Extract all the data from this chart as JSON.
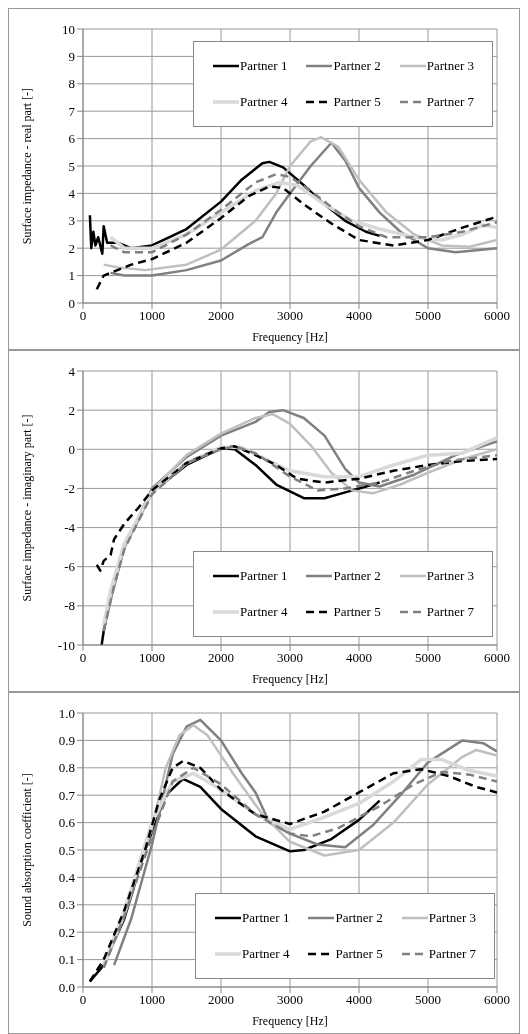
{
  "chart_data": [
    {
      "type": "line",
      "xlabel": "Frequency [Hz]",
      "ylabel": "Surface impedance - real part [-]",
      "xlim": [
        0,
        6000
      ],
      "xticks": [
        0,
        1000,
        2000,
        3000,
        4000,
        5000,
        6000
      ],
      "ylim": [
        0,
        10
      ],
      "yticks": [
        0,
        1,
        2,
        3,
        4,
        5,
        6,
        7,
        8,
        9,
        10
      ],
      "grid": true,
      "legend": "top",
      "marker": "none",
      "series": [
        {
          "name": "Partner 1",
          "color": "#000000",
          "line_style": "solid",
          "x": [
            100,
            120,
            150,
            180,
            220,
            280,
            300,
            350,
            500,
            700,
            1000,
            1500,
            2000,
            2300,
            2600,
            2700,
            2900,
            3200,
            3500,
            3800,
            4100,
            4300
          ],
          "values": [
            3.2,
            2.0,
            2.6,
            2.1,
            2.4,
            1.8,
            2.8,
            2.2,
            2.2,
            2.0,
            2.1,
            2.7,
            3.7,
            4.5,
            5.1,
            5.15,
            4.95,
            4.3,
            3.6,
            3.0,
            2.6,
            2.45
          ]
        },
        {
          "name": "Partner 2",
          "color": "#808080",
          "line_style": "solid",
          "x": [
            400,
            600,
            1000,
            1500,
            2000,
            2400,
            2600,
            2800,
            3000,
            3300,
            3600,
            3800,
            4000,
            4300,
            4600,
            5000,
            5400,
            6000
          ],
          "values": [
            1.1,
            1.0,
            1.0,
            1.2,
            1.55,
            2.15,
            2.4,
            3.3,
            4.0,
            5.0,
            5.85,
            5.2,
            4.2,
            3.3,
            2.6,
            2.0,
            1.85,
            2.0
          ]
        },
        {
          "name": "Partner 3",
          "color": "#bfbfbf",
          "line_style": "solid",
          "x": [
            300,
            500,
            900,
            1500,
            2000,
            2500,
            2800,
            3000,
            3300,
            3450,
            3700,
            4000,
            4400,
            4800,
            5200,
            5600,
            6000
          ],
          "values": [
            1.4,
            1.3,
            1.2,
            1.4,
            1.95,
            3.0,
            4.0,
            5.0,
            5.9,
            6.05,
            5.7,
            4.5,
            3.3,
            2.5,
            2.1,
            2.05,
            2.3
          ]
        },
        {
          "name": "Partner 4",
          "color": "#d9d9d9",
          "line_style": "solid",
          "x": [
            400,
            600,
            1000,
            1500,
            2000,
            2500,
            2850,
            3100,
            3500,
            3900,
            4300,
            4800,
            5200,
            5500,
            5800,
            6000
          ],
          "values": [
            2.4,
            2.0,
            2.0,
            2.5,
            3.3,
            4.1,
            4.4,
            4.3,
            3.6,
            3.0,
            2.7,
            2.4,
            2.3,
            2.5,
            2.85,
            2.75
          ]
        },
        {
          "name": "Partner 5",
          "color": "#000000",
          "line_style": "dashed",
          "x": [
            200,
            300,
            500,
            700,
            1000,
            1500,
            2000,
            2400,
            2700,
            2900,
            3200,
            3600,
            4000,
            4500,
            5000,
            5500,
            6000
          ],
          "values": [
            0.5,
            1.0,
            1.2,
            1.4,
            1.6,
            2.2,
            3.1,
            3.9,
            4.25,
            4.2,
            3.6,
            2.9,
            2.3,
            2.1,
            2.3,
            2.75,
            3.15
          ]
        },
        {
          "name": "Partner 7",
          "color": "#808080",
          "line_style": "dashed",
          "x": [
            400,
            600,
            1000,
            1500,
            2000,
            2500,
            2800,
            3000,
            3300,
            3700,
            4000,
            4400,
            5000,
            5500,
            6000
          ],
          "values": [
            2.1,
            1.85,
            1.85,
            2.5,
            3.4,
            4.4,
            4.7,
            4.6,
            4.1,
            3.3,
            2.8,
            2.4,
            2.4,
            2.6,
            2.95
          ]
        }
      ]
    },
    {
      "type": "line",
      "xlabel": "Frequency [Hz]",
      "ylabel": "Surface impedance - imaginary part [-]",
      "xlim": [
        0,
        6000
      ],
      "xticks": [
        0,
        1000,
        2000,
        3000,
        4000,
        5000,
        6000
      ],
      "ylim": [
        -10,
        4
      ],
      "yticks": [
        -10,
        -8,
        -6,
        -4,
        -2,
        0,
        2,
        4
      ],
      "grid": true,
      "legend": "bottom",
      "marker": "none",
      "series": [
        {
          "name": "Partner 1",
          "color": "#000000",
          "line_style": "solid",
          "x": [
            270,
            300,
            400,
            600,
            1000,
            1500,
            2000,
            2200,
            2500,
            2800,
            3200,
            3500,
            3800,
            4000,
            4300
          ],
          "values": [
            -10,
            -9.3,
            -7.5,
            -5,
            -2.2,
            -0.8,
            0.05,
            0.0,
            -0.8,
            -1.8,
            -2.5,
            -2.5,
            -2.2,
            -2.0,
            -1.7
          ]
        },
        {
          "name": "Partner 2",
          "color": "#808080",
          "line_style": "solid",
          "x": [
            300,
            400,
            600,
            1000,
            1500,
            2000,
            2500,
            2700,
            2900,
            3200,
            3500,
            3800,
            4000,
            4300,
            4800,
            5400,
            6000
          ],
          "values": [
            -9.2,
            -7.7,
            -5,
            -2.0,
            -0.4,
            0.7,
            1.4,
            1.9,
            2.0,
            1.6,
            0.7,
            -1.0,
            -1.7,
            -1.9,
            -1.3,
            -0.3,
            0.4
          ]
        },
        {
          "name": "Partner 3",
          "color": "#bfbfbf",
          "line_style": "solid",
          "x": [
            300,
            400,
            600,
            1000,
            1500,
            2000,
            2500,
            2750,
            3000,
            3300,
            3600,
            3900,
            4200,
            4600,
            5000,
            5500,
            6000
          ],
          "values": [
            -9.0,
            -7.5,
            -5,
            -2.1,
            -0.3,
            0.8,
            1.6,
            1.8,
            1.3,
            0.2,
            -1.2,
            -2.1,
            -2.25,
            -1.8,
            -1.2,
            -0.5,
            0.0
          ]
        },
        {
          "name": "Partner 4",
          "color": "#d9d9d9",
          "line_style": "solid",
          "x": [
            300,
            400,
            600,
            1000,
            1500,
            2000,
            2300,
            2700,
            3000,
            3500,
            4000,
            4500,
            5000,
            5500,
            6000
          ],
          "values": [
            -9.0,
            -7.2,
            -4.8,
            -2.2,
            -0.7,
            0.1,
            0.1,
            -0.6,
            -1.1,
            -1.4,
            -1.4,
            -0.8,
            -0.3,
            -0.2,
            0.6
          ]
        },
        {
          "name": "Partner 5",
          "color": "#000000",
          "line_style": "dashed",
          "x": [
            200,
            250,
            300,
            400,
            450,
            600,
            800,
            1000,
            1500,
            2000,
            2200,
            2500,
            2800,
            3100,
            3500,
            4000,
            4500,
            5000,
            5500,
            6000
          ],
          "values": [
            -5.9,
            -6.2,
            -5.7,
            -5.4,
            -4.6,
            -3.8,
            -3.0,
            -2.1,
            -0.7,
            0.05,
            0.15,
            -0.3,
            -0.8,
            -1.5,
            -1.7,
            -1.5,
            -1.1,
            -0.8,
            -0.6,
            -0.5
          ]
        },
        {
          "name": "Partner 7",
          "color": "#808080",
          "line_style": "dashed",
          "x": [
            300,
            450,
            600,
            1000,
            1500,
            2000,
            2200,
            2500,
            3000,
            3400,
            3800,
            4300,
            4800,
            5300,
            6000
          ],
          "values": [
            -9.3,
            -7.0,
            -5.1,
            -2.3,
            -0.7,
            0.0,
            0.15,
            -0.2,
            -1.4,
            -2.1,
            -2.0,
            -1.7,
            -1.1,
            -0.6,
            -0.3
          ]
        }
      ]
    },
    {
      "type": "line",
      "xlabel": "Frequency [Hz]",
      "ylabel": "Sound absorption coefficient [-]",
      "xlim": [
        0,
        6000
      ],
      "xticks": [
        0,
        1000,
        2000,
        3000,
        4000,
        5000,
        6000
      ],
      "ylim": [
        0,
        1
      ],
      "yticks": [
        {
          "value": 0,
          "label": "0.0"
        },
        0.1,
        0.2,
        0.3,
        0.4,
        0.5,
        0.6,
        0.7,
        0.8,
        0.9,
        {
          "value": 1,
          "label": "1.0"
        }
      ],
      "grid": true,
      "legend": "bottom right",
      "marker": "none",
      "series": [
        {
          "name": "Partner 1",
          "color": "#000000",
          "line_style": "solid",
          "x": [
            100,
            300,
            600,
            900,
            1200,
            1450,
            1700,
            2000,
            2500,
            3000,
            3200,
            3600,
            4000,
            4300
          ],
          "values": [
            0.02,
            0.08,
            0.25,
            0.5,
            0.7,
            0.76,
            0.73,
            0.65,
            0.55,
            0.495,
            0.5,
            0.54,
            0.61,
            0.68
          ]
        },
        {
          "name": "Partner 2",
          "color": "#808080",
          "line_style": "solid",
          "x": [
            450,
            700,
            1000,
            1300,
            1500,
            1700,
            2000,
            2300,
            2500,
            2700,
            3000,
            3400,
            3800,
            4200,
            4600,
            5000,
            5500,
            5800,
            6000
          ],
          "values": [
            0.08,
            0.25,
            0.52,
            0.85,
            0.95,
            0.975,
            0.9,
            0.78,
            0.71,
            0.6,
            0.56,
            0.52,
            0.51,
            0.59,
            0.7,
            0.82,
            0.9,
            0.89,
            0.86
          ]
        },
        {
          "name": "Partner 3",
          "color": "#bfbfbf",
          "line_style": "solid",
          "x": [
            300,
            600,
            1000,
            1200,
            1400,
            1600,
            1800,
            2200,
            2600,
            3000,
            3500,
            4000,
            4500,
            5000,
            5500,
            5700,
            6000
          ],
          "values": [
            0.07,
            0.26,
            0.58,
            0.8,
            0.92,
            0.955,
            0.92,
            0.77,
            0.63,
            0.53,
            0.48,
            0.5,
            0.6,
            0.74,
            0.84,
            0.865,
            0.845
          ]
        },
        {
          "name": "Partner 4",
          "color": "#d9d9d9",
          "line_style": "solid",
          "x": [
            300,
            600,
            1000,
            1300,
            1600,
            2000,
            2500,
            3000,
            3500,
            4000,
            4500,
            4900,
            5200,
            5600,
            6000
          ],
          "values": [
            0.08,
            0.28,
            0.6,
            0.75,
            0.78,
            0.72,
            0.63,
            0.575,
            0.62,
            0.67,
            0.75,
            0.83,
            0.83,
            0.79,
            0.77
          ]
        },
        {
          "name": "Partner 5",
          "color": "#000000",
          "line_style": "dashed",
          "x": [
            100,
            300,
            600,
            900,
            1100,
            1300,
            1450,
            1700,
            2000,
            2500,
            3000,
            3500,
            4000,
            4500,
            4900,
            5300,
            5700,
            6000
          ],
          "values": [
            0.02,
            0.1,
            0.28,
            0.5,
            0.68,
            0.8,
            0.825,
            0.8,
            0.72,
            0.63,
            0.595,
            0.64,
            0.71,
            0.78,
            0.795,
            0.77,
            0.73,
            0.71
          ]
        },
        {
          "name": "Partner 7",
          "color": "#808080",
          "line_style": "dashed",
          "x": [
            300,
            600,
            1000,
            1300,
            1600,
            2000,
            2500,
            3000,
            3300,
            3700,
            4300,
            4800,
            5200,
            5600,
            6000
          ],
          "values": [
            0.07,
            0.26,
            0.55,
            0.75,
            0.8,
            0.74,
            0.63,
            0.56,
            0.55,
            0.58,
            0.66,
            0.74,
            0.785,
            0.775,
            0.75
          ]
        }
      ]
    }
  ]
}
